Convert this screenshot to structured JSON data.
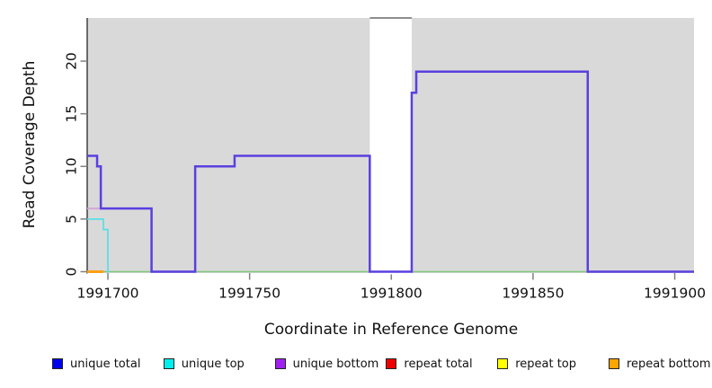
{
  "figure": {
    "xlabel": "Coordinate in Reference Genome",
    "ylabel": "Read Coverage Depth"
  },
  "chart_data": {
    "type": "line",
    "subtype": "step-coverage-plot",
    "title": "",
    "xlabel": "Coordinate in Reference Genome",
    "ylabel": "Read Coverage Depth",
    "xlim": [
      1991692.7,
      1991906.8
    ],
    "ylim": [
      0,
      24.1
    ],
    "grid": false,
    "plot_bg": "#d9d9d9",
    "x_ticks": [
      {
        "value": 1991700,
        "label": "1991700"
      },
      {
        "value": 1991750,
        "label": "1991750"
      },
      {
        "value": 1991800,
        "label": "1991800"
      },
      {
        "value": 1991850,
        "label": "1991850"
      },
      {
        "value": 1991900,
        "label": "1991900"
      }
    ],
    "y_ticks": [
      {
        "value": 0,
        "label": "0"
      },
      {
        "value": 5,
        "label": "5"
      },
      {
        "value": 10,
        "label": "10"
      },
      {
        "value": 15,
        "label": "15"
      },
      {
        "value": 20,
        "label": "20"
      }
    ],
    "masked_region": {
      "x0": 1991792.4,
      "x1": 1991807.2,
      "fill": "#ffffff",
      "top_line_color": "#8c8c8c",
      "note": "white vertical band over panel; coverage line runs at 0 through it"
    },
    "series": [
      {
        "name": "baseline-green",
        "legend": null,
        "color": "#82c882",
        "width": 1.6,
        "layer": 1,
        "steps": [
          [
            1991692.7,
            0
          ]
        ],
        "end_x": 1991906.8
      },
      {
        "name": "unique-bottom-visible",
        "legend": "unique bottom",
        "color": "#d4a6d8",
        "width": 2,
        "layer": 1,
        "steps": [
          [
            1991692.7,
            6
          ]
        ],
        "end_x": 1991697.5
      },
      {
        "name": "unique-top",
        "legend": "unique top",
        "color": "#4fe0e8",
        "width": 1.6,
        "layer": 1,
        "steps": [
          [
            1991692.7,
            5
          ],
          [
            1991698.4,
            4
          ],
          [
            1991700.0,
            0
          ]
        ],
        "end_x": 1991700.3
      },
      {
        "name": "repeat-bottom",
        "legend": "repeat bottom",
        "color": "#ffa010",
        "width": 3,
        "layer": 1,
        "steps": [
          [
            1991692.7,
            0
          ]
        ],
        "end_x": 1991698.4
      },
      {
        "name": "unique-total",
        "legend": "unique total",
        "color": "#5a3fe0",
        "width": 2.5,
        "layer": 2,
        "steps": [
          [
            1991692.7,
            11
          ],
          [
            1991696.2,
            10
          ],
          [
            1991697.5,
            6
          ],
          [
            1991715.4,
            0
          ],
          [
            1991730.8,
            10
          ],
          [
            1991744.7,
            11
          ],
          [
            1991792.4,
            0
          ],
          [
            1991807.2,
            17
          ],
          [
            1991808.8,
            19
          ],
          [
            1991869.3,
            0
          ]
        ],
        "end_x": 1991906.8
      }
    ],
    "legend": {
      "position": "bottom",
      "items": [
        {
          "label": "unique total",
          "color": "#0000ee"
        },
        {
          "label": "unique top",
          "color": "#00eeee"
        },
        {
          "label": "unique bottom",
          "color": "#a020f0"
        },
        {
          "label": "repeat total",
          "color": "#ee0000"
        },
        {
          "label": "repeat top",
          "color": "#ffff00"
        },
        {
          "label": "repeat bottom",
          "color": "#ffa500"
        }
      ]
    }
  },
  "colors": {
    "axis_line": "#404040",
    "tick_mark": "#808080",
    "text": "#111111"
  }
}
